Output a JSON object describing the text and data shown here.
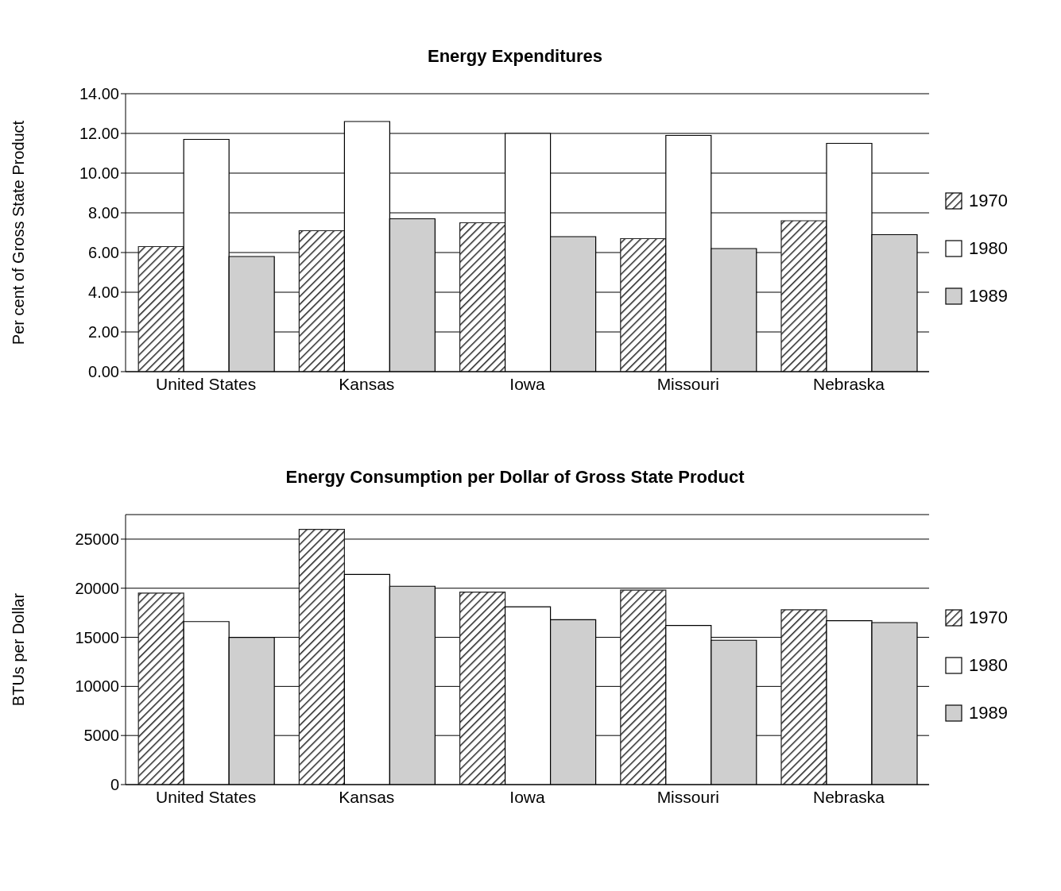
{
  "chart_data": [
    {
      "type": "bar",
      "title": "Energy Expenditures",
      "ylabel": "Per cent of Gross State Product",
      "categories": [
        "United States",
        "Kansas",
        "Iowa",
        "Missouri",
        "Nebraska"
      ],
      "series": [
        {
          "name": "1970",
          "color": "#222222",
          "values": [
            6.3,
            7.1,
            7.5,
            6.7,
            7.6
          ]
        },
        {
          "name": "1980",
          "color": "#ffffff",
          "values": [
            11.7,
            12.6,
            12.0,
            11.9,
            11.5
          ]
        },
        {
          "name": "1989",
          "color": "#cfcfcf",
          "values": [
            5.8,
            7.7,
            6.8,
            6.2,
            6.9
          ]
        }
      ],
      "ylim": [
        0,
        14
      ],
      "yticks": [
        {
          "value": 0,
          "label": "0.00"
        },
        {
          "value": 2,
          "label": "2.00"
        },
        {
          "value": 4,
          "label": "4.00"
        },
        {
          "value": 6,
          "label": "6.00"
        },
        {
          "value": 8,
          "label": "8.00"
        },
        {
          "value": 10,
          "label": "10.00"
        },
        {
          "value": 12,
          "label": "12.00"
        },
        {
          "value": 14,
          "label": "14.00"
        }
      ],
      "grid": "y",
      "legend": "right"
    },
    {
      "type": "bar",
      "title": "Energy Consumption per Dollar of Gross State Product",
      "ylabel": "BTUs per Dollar",
      "categories": [
        "United States",
        "Kansas",
        "Iowa",
        "Missouri",
        "Nebraska"
      ],
      "series": [
        {
          "name": "1970",
          "color": "#222222",
          "values": [
            19500,
            26000,
            19600,
            19800,
            17800
          ]
        },
        {
          "name": "1980",
          "color": "#ffffff",
          "values": [
            16600,
            21400,
            18100,
            16200,
            16700
          ]
        },
        {
          "name": "1989",
          "color": "#cfcfcf",
          "values": [
            15000,
            20200,
            16800,
            14700,
            16500
          ]
        }
      ],
      "ylim": [
        0,
        27500
      ],
      "yticks": [
        0,
        5000,
        10000,
        15000,
        20000,
        25000
      ],
      "grid": "y",
      "legend": "right"
    }
  ]
}
